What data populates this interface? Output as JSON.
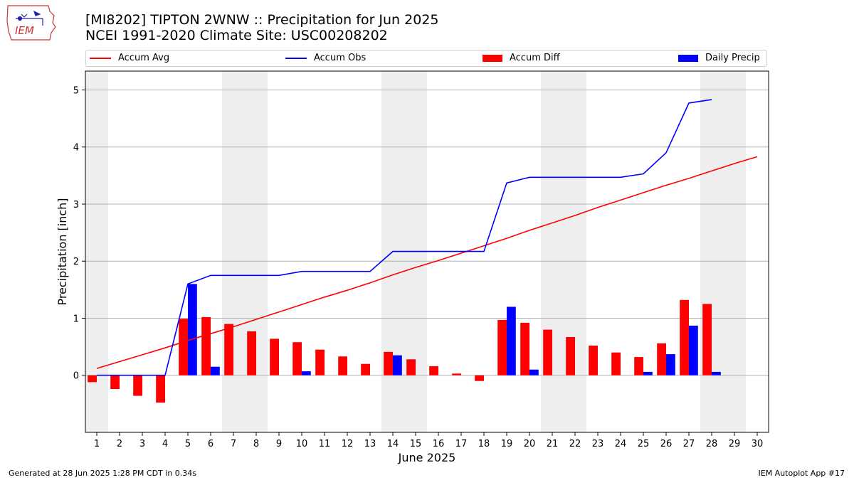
{
  "header": {
    "logo_text": "IEM",
    "title_line1": "[MI8202] TIPTON 2WNW :: Precipitation for Jun 2025",
    "title_line2": "NCEI 1991-2020 Climate Site: USC00208202"
  },
  "legend": {
    "accum_avg": "Accum Avg",
    "accum_obs": "Accum Obs",
    "accum_diff": "Accum Diff",
    "daily_precip": "Daily Precip"
  },
  "footer": {
    "generated": "Generated at 28 Jun 2025 1:28 PM CDT in 0.34s",
    "app": "IEM Autoplot App #17"
  },
  "colors": {
    "avg": "#ff0000",
    "obs": "#0000ff",
    "diff": "#ff0000",
    "daily": "#0000ff",
    "weekend_shade": "#eeeeee",
    "grid": "#b0b0b0"
  },
  "chart_data": {
    "type": "bar",
    "xlabel": "June 2025",
    "ylabel": "Precipitation [inch]",
    "ylim": [
      -1.0,
      5.33
    ],
    "xlim": [
      0.5,
      30.5
    ],
    "yticks": [
      0,
      1,
      2,
      3,
      4,
      5
    ],
    "days": [
      1,
      2,
      3,
      4,
      5,
      6,
      7,
      8,
      9,
      10,
      11,
      12,
      13,
      14,
      15,
      16,
      17,
      18,
      19,
      20,
      21,
      22,
      23,
      24,
      25,
      26,
      27,
      28,
      29,
      30
    ],
    "grid": "horizontal",
    "legend_position": "top",
    "shaded_weekend_days": [
      [
        1,
        1
      ],
      [
        7,
        8
      ],
      [
        14,
        15
      ],
      [
        21,
        22
      ],
      [
        28,
        29
      ]
    ],
    "series": [
      {
        "name": "Accum Avg",
        "kind": "line",
        "x": [
          1,
          2,
          3,
          4,
          5,
          6,
          7,
          8,
          9,
          10,
          11,
          12,
          13,
          14,
          15,
          16,
          17,
          18,
          19,
          20,
          21,
          22,
          23,
          24,
          25,
          26,
          27,
          28,
          29,
          30
        ],
        "values": [
          0.12,
          0.24,
          0.36,
          0.48,
          0.61,
          0.73,
          0.85,
          0.98,
          1.11,
          1.24,
          1.37,
          1.49,
          1.62,
          1.76,
          1.89,
          2.01,
          2.14,
          2.27,
          2.4,
          2.54,
          2.67,
          2.8,
          2.94,
          3.07,
          3.2,
          3.33,
          3.45,
          3.58,
          3.71,
          3.83
        ]
      },
      {
        "name": "Accum Obs",
        "kind": "line",
        "x": [
          1,
          2,
          3,
          4,
          5,
          6,
          7,
          8,
          9,
          10,
          11,
          12,
          13,
          14,
          15,
          16,
          17,
          18,
          19,
          20,
          21,
          22,
          23,
          24,
          25,
          26,
          27,
          28
        ],
        "values": [
          0,
          0,
          0,
          0,
          1.6,
          1.75,
          1.75,
          1.75,
          1.75,
          1.82,
          1.82,
          1.82,
          1.82,
          2.17,
          2.17,
          2.17,
          2.17,
          2.17,
          3.37,
          3.47,
          3.47,
          3.47,
          3.47,
          3.47,
          3.53,
          3.9,
          4.77,
          4.83
        ]
      },
      {
        "name": "Accum Diff",
        "kind": "bar",
        "x": [
          1,
          2,
          3,
          4,
          5,
          6,
          7,
          8,
          9,
          10,
          11,
          12,
          13,
          14,
          15,
          16,
          17,
          18,
          19,
          20,
          21,
          22,
          23,
          24,
          25,
          26,
          27,
          28
        ],
        "values": [
          -0.12,
          -0.24,
          -0.36,
          -0.48,
          0.99,
          1.02,
          0.9,
          0.77,
          0.64,
          0.58,
          0.45,
          0.33,
          0.2,
          0.41,
          0.28,
          0.16,
          0.03,
          -0.1,
          0.97,
          0.92,
          0.8,
          0.67,
          0.52,
          0.4,
          0.32,
          0.56,
          1.32,
          1.25
        ]
      },
      {
        "name": "Daily Precip",
        "kind": "bar",
        "x": [
          5,
          6,
          10,
          14,
          19,
          20,
          25,
          26,
          27,
          28
        ],
        "values": [
          1.6,
          0.15,
          0.07,
          0.35,
          1.2,
          0.1,
          0.06,
          0.37,
          0.87,
          0.06
        ]
      }
    ]
  }
}
